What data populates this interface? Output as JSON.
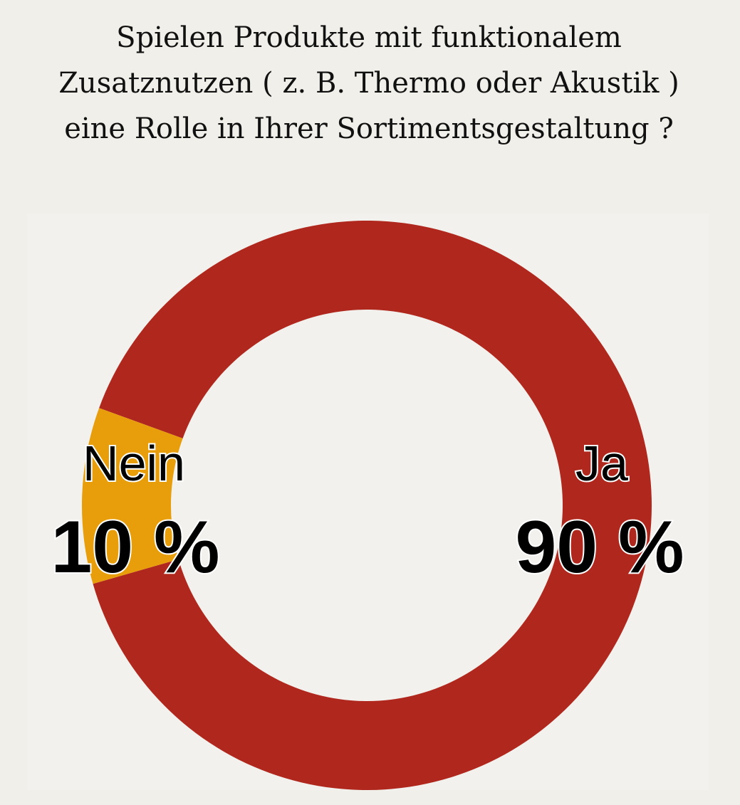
{
  "chart_data": {
    "type": "donut",
    "title": [
      "Spielen Produkte mit funktionalem",
      "Zusatznutzen ( z. B. Thermo oder Akustik )",
      "eine Rolle in Ihrer Sortimentsgestaltung ?"
    ],
    "categories": [
      "Ja",
      "Nein"
    ],
    "values": [
      90,
      10
    ],
    "value_labels": [
      "90 %",
      "10 %"
    ],
    "colors": [
      "#b0281d",
      "#e89e0b"
    ]
  }
}
